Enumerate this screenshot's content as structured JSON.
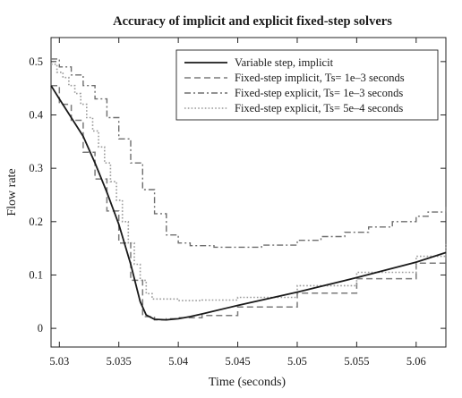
{
  "chart_data": {
    "type": "line",
    "title": "Accuracy of implicit and explicit fixed-step solvers",
    "xlabel": "Time (seconds)",
    "ylabel": "Flow rate",
    "xlim": [
      5.0293,
      5.0625
    ],
    "ylim": [
      -0.035,
      0.545
    ],
    "x_ticks": [
      5.03,
      5.035,
      5.04,
      5.045,
      5.05,
      5.055,
      5.06
    ],
    "x_tick_labels": [
      "5.03",
      "5.035",
      "5.04",
      "5.045",
      "5.05",
      "5.055",
      "5.06"
    ],
    "y_ticks": [
      0,
      0.1,
      0.2,
      0.3,
      0.4,
      0.5
    ],
    "y_tick_labels": [
      "0",
      "0.1",
      "0.2",
      "0.3",
      "0.4",
      "0.5"
    ],
    "grid": false,
    "legend_position": "top-right",
    "series": [
      {
        "name": "Variable step, implicit",
        "style": "solid",
        "stepped": false,
        "color": "#1a1a1a",
        "points": [
          [
            5.0293,
            0.455
          ],
          [
            5.03,
            0.43
          ],
          [
            5.031,
            0.395
          ],
          [
            5.032,
            0.36
          ],
          [
            5.033,
            0.31
          ],
          [
            5.034,
            0.255
          ],
          [
            5.035,
            0.195
          ],
          [
            5.036,
            0.12
          ],
          [
            5.0368,
            0.05
          ],
          [
            5.0373,
            0.025
          ],
          [
            5.038,
            0.017
          ],
          [
            5.039,
            0.016
          ],
          [
            5.04,
            0.018
          ],
          [
            5.041,
            0.022
          ],
          [
            5.042,
            0.027
          ],
          [
            5.045,
            0.043
          ],
          [
            5.05,
            0.068
          ],
          [
            5.055,
            0.095
          ],
          [
            5.06,
            0.124
          ],
          [
            5.0625,
            0.142
          ]
        ]
      },
      {
        "name": "Fixed-step implicit, Ts= 1e–3 seconds",
        "style": "dashed",
        "stepped": true,
        "color": "#7a7a7a",
        "points": [
          [
            5.0293,
            0.455
          ],
          [
            5.03,
            0.42
          ],
          [
            5.031,
            0.39
          ],
          [
            5.032,
            0.33
          ],
          [
            5.033,
            0.28
          ],
          [
            5.034,
            0.22
          ],
          [
            5.035,
            0.16
          ],
          [
            5.036,
            0.09
          ],
          [
            5.037,
            0.022
          ],
          [
            5.038,
            0.016
          ],
          [
            5.039,
            0.018
          ],
          [
            5.04,
            0.02
          ],
          [
            5.042,
            0.024
          ],
          [
            5.045,
            0.04
          ],
          [
            5.05,
            0.066
          ],
          [
            5.055,
            0.093
          ],
          [
            5.06,
            0.122
          ],
          [
            5.0625,
            0.14
          ]
        ]
      },
      {
        "name": "Fixed-step explicit, Ts= 1e–3 seconds",
        "style": "dashdot",
        "stepped": true,
        "color": "#6e6e6e",
        "points": [
          [
            5.0293,
            0.505
          ],
          [
            5.03,
            0.49
          ],
          [
            5.031,
            0.475
          ],
          [
            5.032,
            0.455
          ],
          [
            5.033,
            0.43
          ],
          [
            5.034,
            0.395
          ],
          [
            5.035,
            0.355
          ],
          [
            5.036,
            0.31
          ],
          [
            5.037,
            0.26
          ],
          [
            5.038,
            0.215
          ],
          [
            5.039,
            0.175
          ],
          [
            5.04,
            0.16
          ],
          [
            5.041,
            0.155
          ],
          [
            5.043,
            0.152
          ],
          [
            5.045,
            0.152
          ],
          [
            5.047,
            0.156
          ],
          [
            5.05,
            0.165
          ],
          [
            5.052,
            0.172
          ],
          [
            5.054,
            0.18
          ],
          [
            5.056,
            0.19
          ],
          [
            5.058,
            0.2
          ],
          [
            5.06,
            0.21
          ],
          [
            5.061,
            0.218
          ],
          [
            5.0625,
            0.228
          ]
        ]
      },
      {
        "name": "Fixed-step explicit, Ts= 5e–4 seconds",
        "style": "dotted",
        "stepped": true,
        "color": "#9a9a9a",
        "points": [
          [
            5.0293,
            0.495
          ],
          [
            5.0298,
            0.48
          ],
          [
            5.0303,
            0.47
          ],
          [
            5.0308,
            0.455
          ],
          [
            5.0313,
            0.44
          ],
          [
            5.0318,
            0.42
          ],
          [
            5.0323,
            0.395
          ],
          [
            5.0328,
            0.37
          ],
          [
            5.0333,
            0.34
          ],
          [
            5.0338,
            0.31
          ],
          [
            5.0343,
            0.275
          ],
          [
            5.0348,
            0.24
          ],
          [
            5.0353,
            0.2
          ],
          [
            5.0358,
            0.16
          ],
          [
            5.0363,
            0.12
          ],
          [
            5.0368,
            0.09
          ],
          [
            5.0373,
            0.065
          ],
          [
            5.0378,
            0.055
          ],
          [
            5.04,
            0.052
          ],
          [
            5.042,
            0.053
          ],
          [
            5.045,
            0.058
          ],
          [
            5.05,
            0.08
          ],
          [
            5.055,
            0.105
          ],
          [
            5.06,
            0.135
          ],
          [
            5.0625,
            0.158
          ]
        ]
      }
    ]
  }
}
